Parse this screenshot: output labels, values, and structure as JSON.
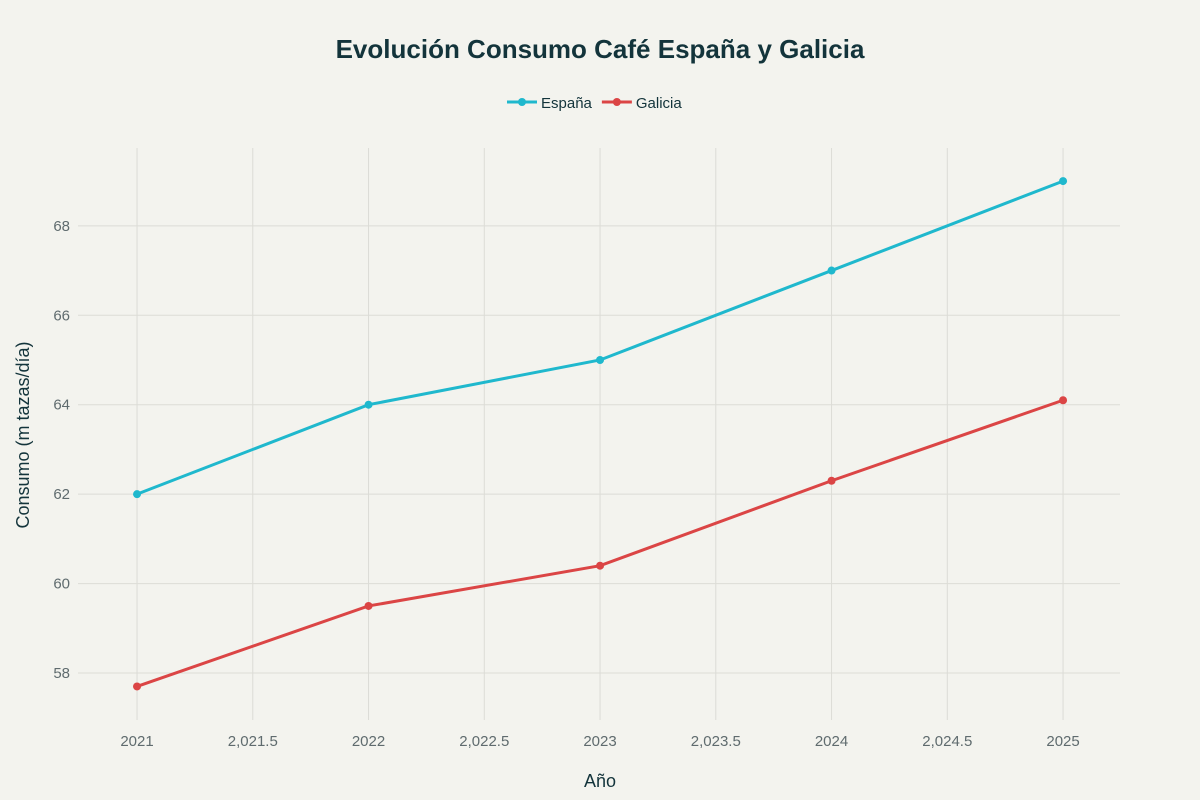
{
  "chart_data": {
    "type": "line",
    "title": "Evolución Consumo Café España y Galicia",
    "xlabel": "Año",
    "ylabel": "Consumo (m tazas/día)",
    "x": [
      2021,
      2022,
      2023,
      2024,
      2025
    ],
    "xlim": [
      2020.745,
      2025.246
    ],
    "ylim": [
      56.95,
      69.74
    ],
    "xticks": [
      "2021",
      "2,021.5",
      "2022",
      "2,022.5",
      "2023",
      "2,023.5",
      "2024",
      "2,024.5",
      "2025"
    ],
    "xtick_values": [
      2021,
      2021.5,
      2022,
      2022.5,
      2023,
      2023.5,
      2024,
      2024.5,
      2025
    ],
    "yticks": [
      "58",
      "60",
      "62",
      "64",
      "66",
      "68"
    ],
    "ytick_values": [
      58,
      60,
      62,
      64,
      66,
      68
    ],
    "grid": true,
    "legend_position": "top-center",
    "series": [
      {
        "name": "España",
        "color": "#1fb8cd",
        "values": [
          62,
          64,
          65,
          67,
          69
        ]
      },
      {
        "name": "Galicia",
        "color": "#db4545",
        "values": [
          57.7,
          59.5,
          60.4,
          62.3,
          64.1
        ]
      }
    ]
  }
}
